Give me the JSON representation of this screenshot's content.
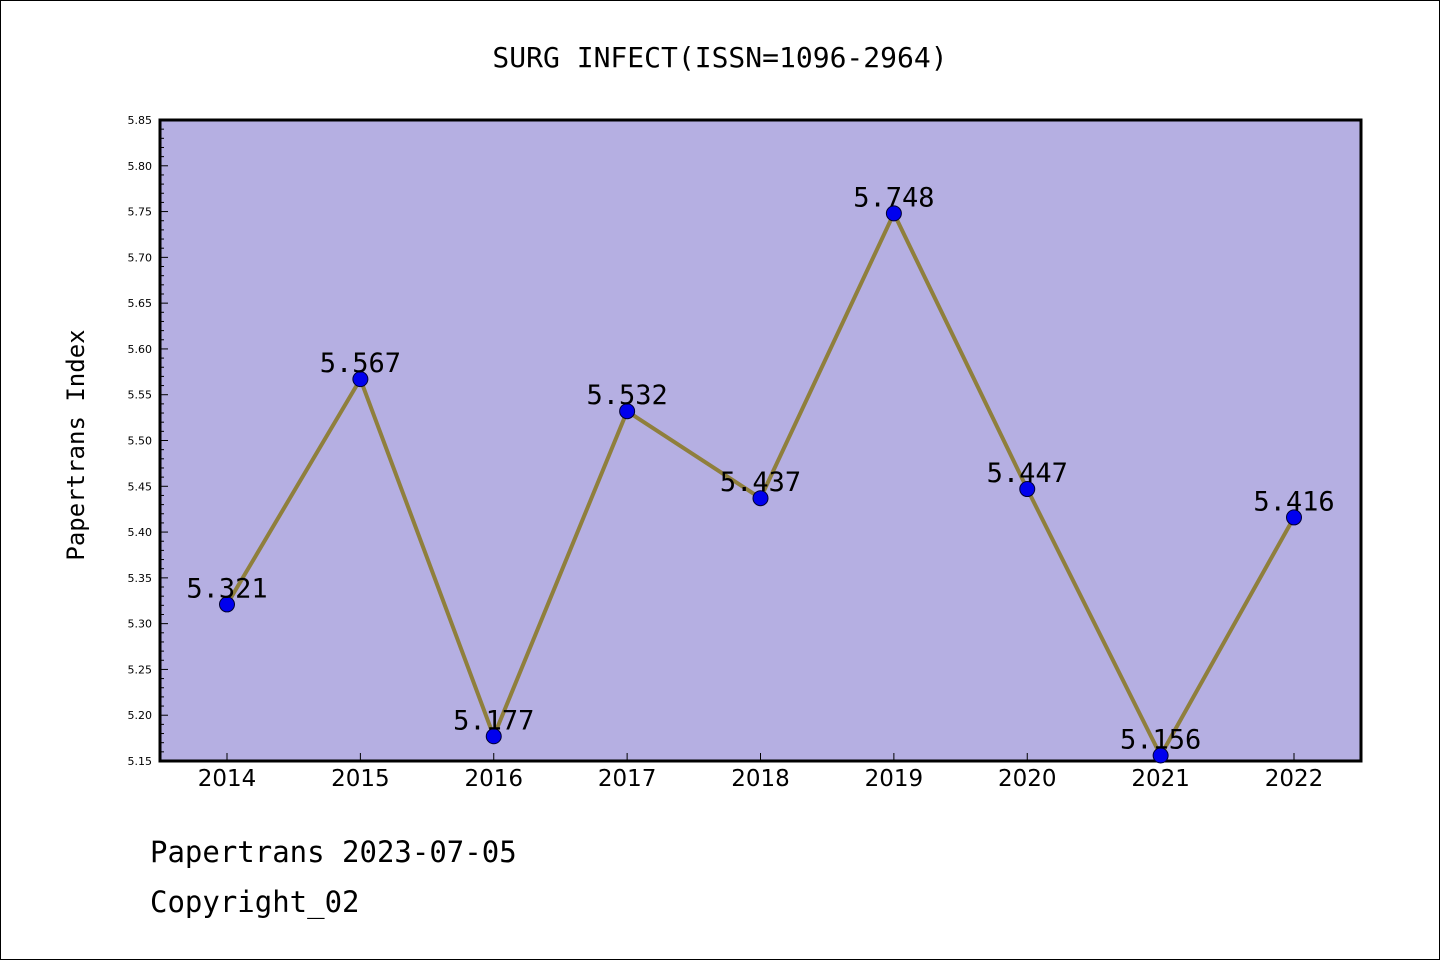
{
  "chart_data": {
    "type": "line",
    "title": "SURG INFECT(ISSN=1096-2964)",
    "xlabel": "",
    "ylabel": "Papertrans Index",
    "categories": [
      "2014",
      "2015",
      "2016",
      "2017",
      "2018",
      "2019",
      "2020",
      "2021",
      "2022"
    ],
    "values": [
      5.321,
      5.567,
      5.177,
      5.532,
      5.437,
      5.748,
      5.447,
      5.156,
      5.416
    ],
    "data_labels": [
      "5.321",
      "5.567",
      "5.177",
      "5.532",
      "5.437",
      "5.748",
      "5.447",
      "5.156",
      "5.416"
    ],
    "ylim": [
      5.15,
      5.85
    ],
    "yticks": [
      "5.15",
      "5.20",
      "5.25",
      "5.30",
      "5.35",
      "5.40",
      "5.45",
      "5.50",
      "5.55",
      "5.60",
      "5.65",
      "5.70",
      "5.75",
      "5.80",
      "5.85"
    ],
    "grid": false,
    "legend": "none",
    "colors": {
      "plot_background": "#b5afe2",
      "line": "#8f7f3c",
      "marker": "#0000ee"
    }
  },
  "footer": {
    "line1": "Papertrans 2023-07-05",
    "line2": "Copyright_02"
  }
}
